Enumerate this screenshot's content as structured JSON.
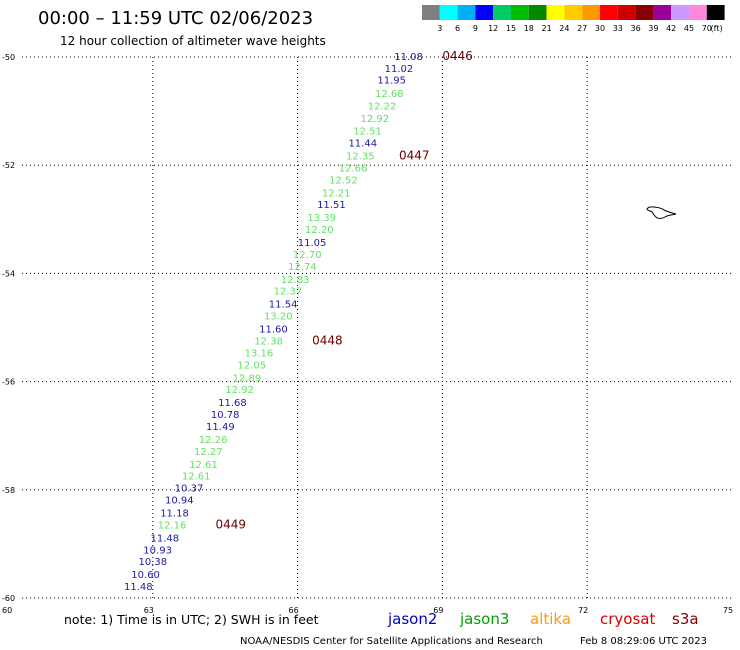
{
  "header": {
    "title": "00:00 – 11:59 UTC 02/06/2023",
    "subtitle": "12 hour collection of altimeter wave heights"
  },
  "colorbar": {
    "labels": [
      "3",
      "6",
      "9",
      "12",
      "15",
      "18",
      "21",
      "24",
      "27",
      "30",
      "33",
      "36",
      "39",
      "42",
      "45",
      "70"
    ],
    "unit": "(ft)",
    "colors": [
      "#7f7f7f",
      "#00ffff",
      "#00b0f0",
      "#0000ff",
      "#00cc66",
      "#00bb00",
      "#008800",
      "#ffff00",
      "#ffcc00",
      "#ff9900",
      "#ff0000",
      "#cc0000",
      "#880000",
      "#990099",
      "#cc99ff",
      "#ff88dd",
      "#000000"
    ]
  },
  "chart_data": {
    "type": "scatter",
    "x_ticks": [
      "60",
      "63",
      "66",
      "69",
      "72",
      "75"
    ],
    "y_ticks": [
      "-50",
      "-52",
      "-54",
      "-56",
      "-58",
      "-60"
    ],
    "xlim": [
      60,
      75
    ],
    "ylim": [
      -60,
      -50
    ],
    "grid": true,
    "series": [
      {
        "name": "jason2",
        "color": "#0000c8"
      },
      {
        "name": "jason3",
        "color": "#00a000"
      },
      {
        "name": "altika",
        "color": "#ff9900"
      },
      {
        "name": "cryosat",
        "color": "#dd0000"
      },
      {
        "name": "s3a",
        "color": "#880000"
      }
    ],
    "points": [
      {
        "x": 68.3,
        "y": -49.98,
        "v": "11.08",
        "c": "#1a1aa6"
      },
      {
        "x": 68.1,
        "y": -50.2,
        "v": "11.02",
        "c": "#1a1aa6"
      },
      {
        "x": 67.95,
        "y": -50.42,
        "v": "11.95",
        "c": "#1a1aa6"
      },
      {
        "x": 67.9,
        "y": -50.67,
        "v": "12.68",
        "c": "#66e066"
      },
      {
        "x": 67.75,
        "y": -50.9,
        "v": "12.22",
        "c": "#66e066"
      },
      {
        "x": 67.6,
        "y": -51.13,
        "v": "12.92",
        "c": "#66e066"
      },
      {
        "x": 67.45,
        "y": -51.36,
        "v": "12.51",
        "c": "#66e066"
      },
      {
        "x": 67.35,
        "y": -51.58,
        "v": "11.44",
        "c": "#1a1aa6"
      },
      {
        "x": 67.3,
        "y": -51.82,
        "v": "12.35",
        "c": "#66e066"
      },
      {
        "x": 67.15,
        "y": -52.04,
        "v": "12.66",
        "c": "#66e066"
      },
      {
        "x": 66.95,
        "y": -52.26,
        "v": "12.52",
        "c": "#66e066"
      },
      {
        "x": 66.8,
        "y": -52.5,
        "v": "12.21",
        "c": "#66e066"
      },
      {
        "x": 66.7,
        "y": -52.72,
        "v": "11.51",
        "c": "#1a1aa6"
      },
      {
        "x": 66.5,
        "y": -52.96,
        "v": "13.39",
        "c": "#66e066"
      },
      {
        "x": 66.45,
        "y": -53.18,
        "v": "12.20",
        "c": "#66e066"
      },
      {
        "x": 66.3,
        "y": -53.42,
        "v": "11.05",
        "c": "#1a1aa6"
      },
      {
        "x": 66.2,
        "y": -53.64,
        "v": "12.70",
        "c": "#66e066"
      },
      {
        "x": 66.1,
        "y": -53.86,
        "v": "12.74",
        "c": "#66e066"
      },
      {
        "x": 65.95,
        "y": -54.1,
        "v": "12.83",
        "c": "#66e066"
      },
      {
        "x": 65.8,
        "y": -54.32,
        "v": "12.37",
        "c": "#66e066"
      },
      {
        "x": 65.7,
        "y": -54.56,
        "v": "11.54",
        "c": "#1a1aa6"
      },
      {
        "x": 65.6,
        "y": -54.78,
        "v": "13.20",
        "c": "#66e066"
      },
      {
        "x": 65.5,
        "y": -55.02,
        "v": "11.60",
        "c": "#1a1aa6"
      },
      {
        "x": 65.4,
        "y": -55.24,
        "v": "12.38",
        "c": "#66e066"
      },
      {
        "x": 65.2,
        "y": -55.46,
        "v": "13.16",
        "c": "#66e066"
      },
      {
        "x": 65.05,
        "y": -55.68,
        "v": "12.05",
        "c": "#66e066"
      },
      {
        "x": 64.95,
        "y": -55.92,
        "v": "12.89",
        "c": "#66e066"
      },
      {
        "x": 64.8,
        "y": -56.14,
        "v": "12.92",
        "c": "#66e066"
      },
      {
        "x": 64.65,
        "y": -56.38,
        "v": "11.68",
        "c": "#1a1aa6"
      },
      {
        "x": 64.5,
        "y": -56.6,
        "v": "10.78",
        "c": "#1a1aa6"
      },
      {
        "x": 64.4,
        "y": -56.82,
        "v": "11.49",
        "c": "#1a1aa6"
      },
      {
        "x": 64.25,
        "y": -57.06,
        "v": "12.26",
        "c": "#66e066"
      },
      {
        "x": 64.15,
        "y": -57.28,
        "v": "12.27",
        "c": "#66e066"
      },
      {
        "x": 64.05,
        "y": -57.52,
        "v": "12.61",
        "c": "#66e066"
      },
      {
        "x": 63.9,
        "y": -57.74,
        "v": "12.61",
        "c": "#66e066"
      },
      {
        "x": 63.75,
        "y": -57.96,
        "v": "10.37",
        "c": "#1a1aa6"
      },
      {
        "x": 63.55,
        "y": -58.18,
        "v": "10.94",
        "c": "#1a1aa6"
      },
      {
        "x": 63.45,
        "y": -58.42,
        "v": "11.18",
        "c": "#1a1aa6"
      },
      {
        "x": 63.4,
        "y": -58.64,
        "v": "12.16",
        "c": "#66e066"
      },
      {
        "x": 63.25,
        "y": -58.88,
        "v": "11.48",
        "c": "#1a1aa6"
      },
      {
        "x": 63.1,
        "y": -59.1,
        "v": "10.93",
        "c": "#1a1aa6"
      },
      {
        "x": 63.0,
        "y": -59.32,
        "v": "10.38",
        "c": "#1a1aa6"
      },
      {
        "x": 62.85,
        "y": -59.56,
        "v": "10.60",
        "c": "#1a1aa6"
      },
      {
        "x": 62.7,
        "y": -59.78,
        "v": "11.48",
        "c": "#1a1aa6"
      }
    ],
    "time_marks": [
      {
        "x": 69.0,
        "y": -49.98,
        "t": "0446"
      },
      {
        "x": 68.1,
        "y": -51.82,
        "t": "0447"
      },
      {
        "x": 66.3,
        "y": -55.24,
        "t": "0448"
      },
      {
        "x": 64.3,
        "y": -58.64,
        "t": "0449"
      }
    ]
  },
  "footer": {
    "note": "note: 1) Time is in UTC; 2) SWH is in feet",
    "credit": "NOAA/NESDIS Center for Satellite Applications and Research",
    "timestamp": "Feb  8 08:29:06 UTC 2023",
    "satellites": [
      "jason2",
      "jason3",
      "altika",
      "cryosat",
      "s3a"
    ]
  }
}
